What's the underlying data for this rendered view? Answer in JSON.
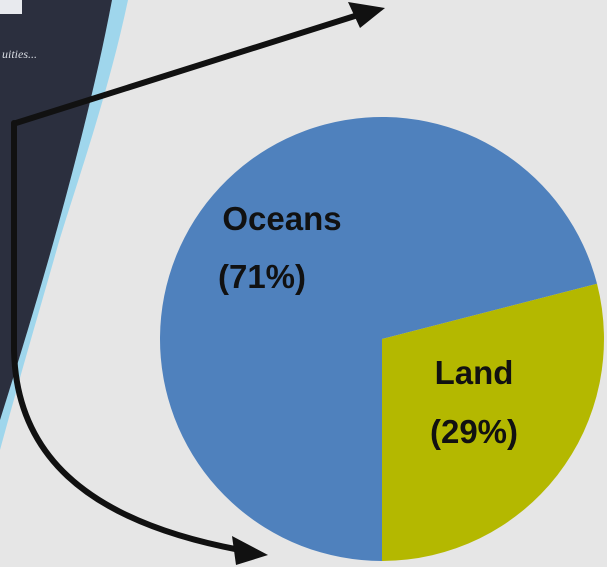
{
  "background": {
    "panel_color": "#2b2f3e",
    "stripe_color": "#9fd6ec",
    "page_color": "#e6e6e6",
    "fragment_text": "uities..."
  },
  "chart_data": {
    "type": "pie",
    "title": "",
    "slices": [
      {
        "name": "Oceans",
        "label": "(71%)",
        "value": 71,
        "color": "#4f81bd"
      },
      {
        "name": "Land",
        "label": "(29%)",
        "value": 29,
        "color": "#b4b800"
      }
    ]
  },
  "arrows": [
    {
      "name": "arrow-up-right",
      "color": "#111111"
    },
    {
      "name": "arrow-down-right",
      "color": "#111111"
    }
  ]
}
